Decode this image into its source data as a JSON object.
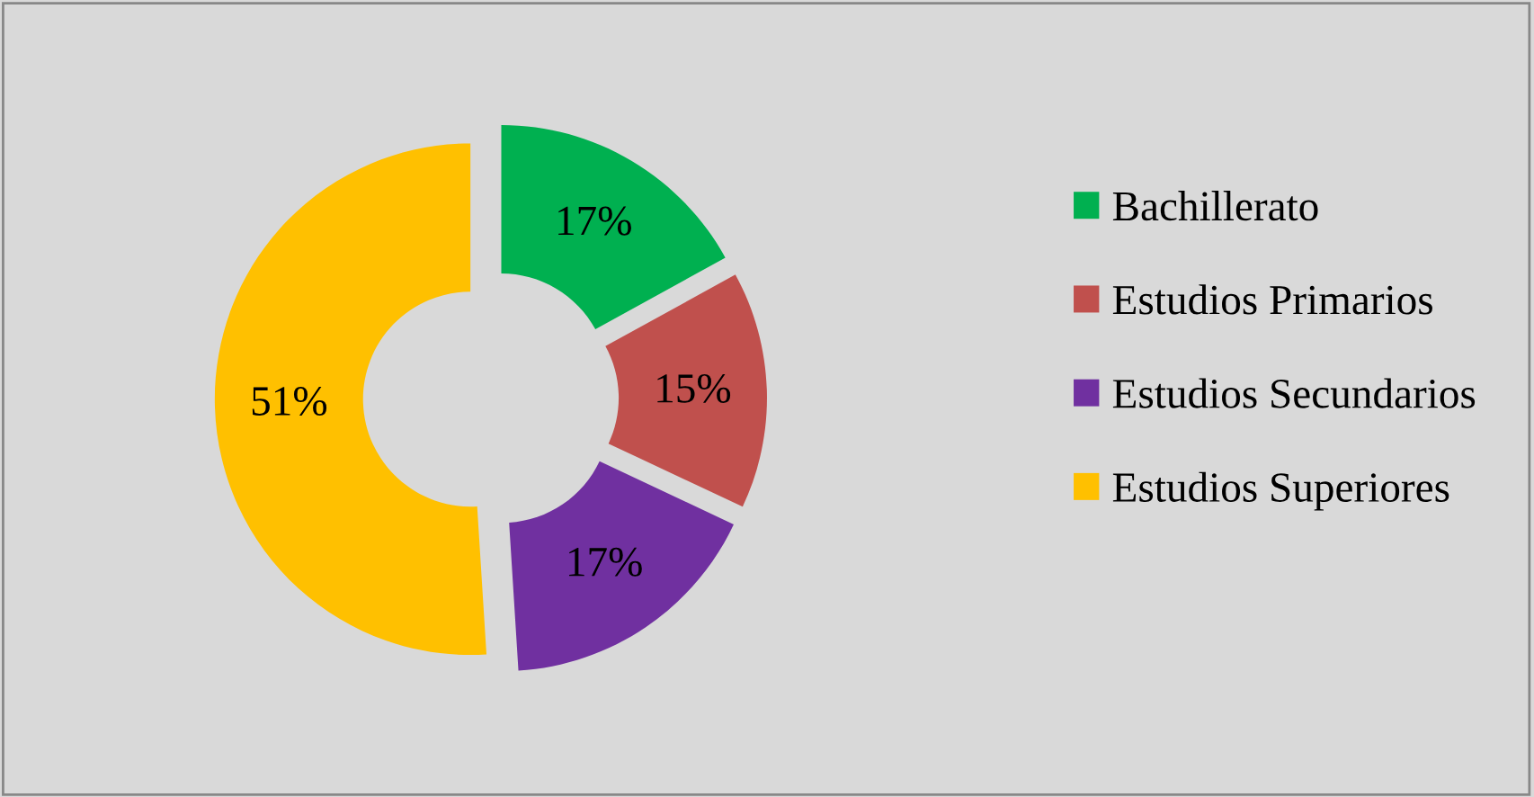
{
  "chart_data": {
    "type": "donut",
    "categories": [
      "Bachillerato",
      "Estudios Primarios",
      "Estudios Secundarios",
      "Estudios Superiores"
    ],
    "values": [
      17,
      15,
      17,
      51
    ],
    "colors": [
      "#00b050",
      "#c0504d",
      "#7030a0",
      "#ffc000"
    ],
    "value_labels": [
      "17%",
      "15%",
      "17%",
      "51%"
    ],
    "legend": "right"
  }
}
